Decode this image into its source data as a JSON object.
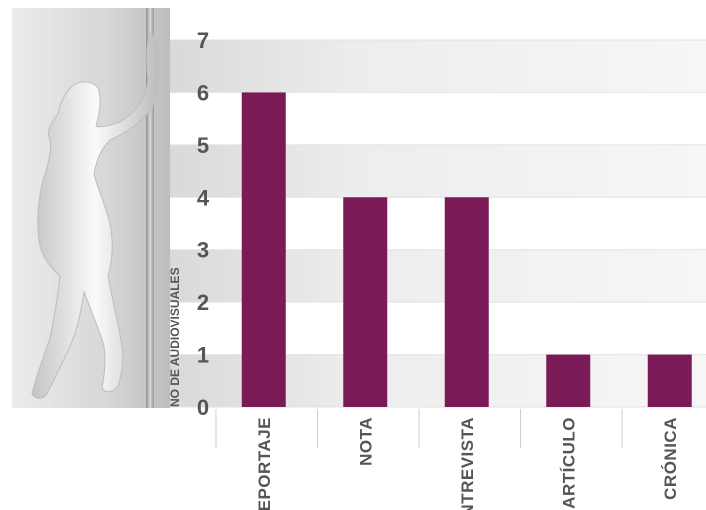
{
  "chart_data": {
    "type": "bar",
    "categories": [
      "REPORTAJE",
      "NOTA",
      "ENTREVISTA",
      "ARTÍCULO",
      "CRÓNICA"
    ],
    "values": [
      6,
      4,
      4,
      1,
      1
    ],
    "ylim": [
      0,
      7
    ],
    "yticks": [
      "0",
      "1",
      "2",
      "3",
      "4",
      "5",
      "6",
      "7"
    ],
    "ylabel": "NO DE AUDIOVISUALES",
    "bar_color": "#7a1a57",
    "grid": true,
    "decoration": "woman-silhouette-icon"
  }
}
